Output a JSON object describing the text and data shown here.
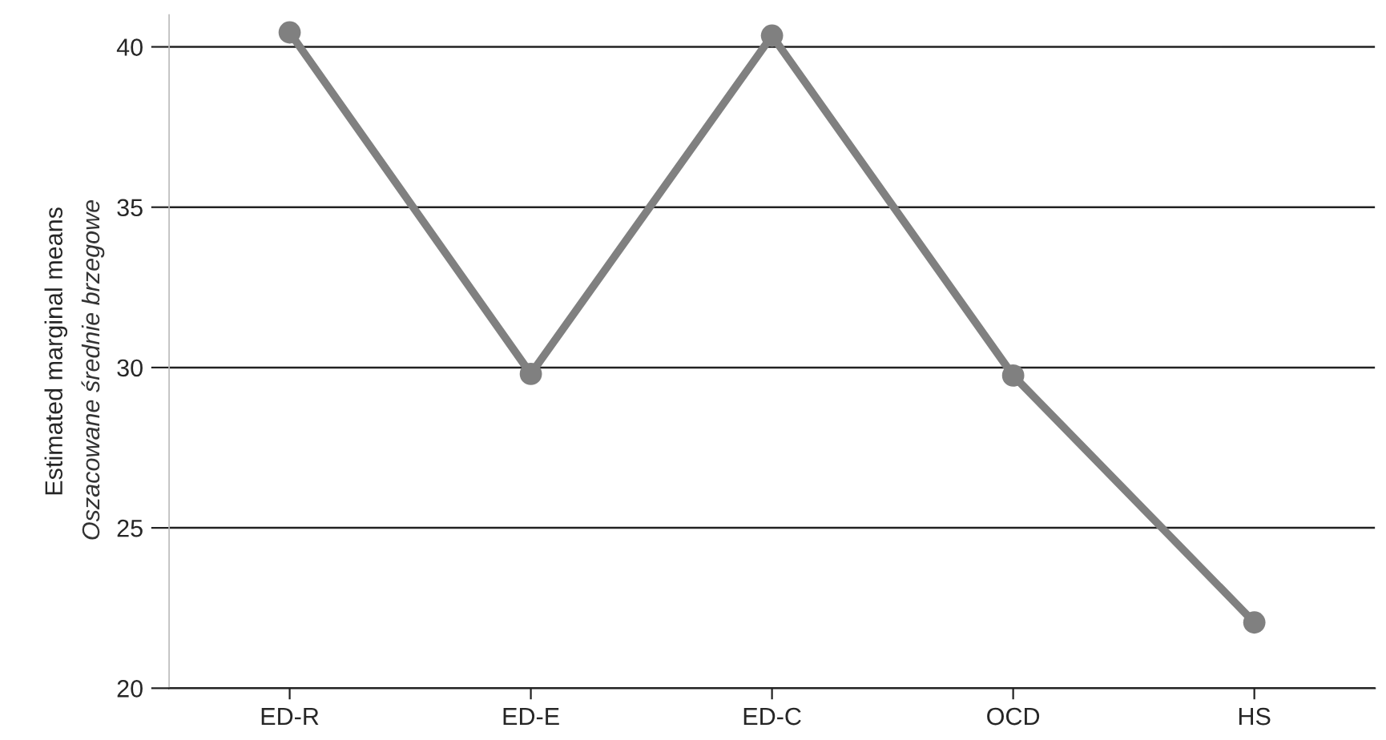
{
  "chart_data": {
    "type": "line",
    "categories": [
      "ED-R",
      "ED-E",
      "ED-C",
      "OCD",
      "HS"
    ],
    "series": [
      {
        "color": "#808080",
        "values": [
          40.45,
          29.8,
          40.35,
          29.75,
          22.05
        ]
      }
    ],
    "ylabel": "Estimated marginal means",
    "annotations": [
      "Oszacowane średnie brzegowe"
    ],
    "ylim": [
      20,
      41
    ],
    "yticks": [
      20,
      25,
      30,
      35,
      40
    ],
    "grid": "y",
    "marker": "circle",
    "line_style": "solid"
  }
}
